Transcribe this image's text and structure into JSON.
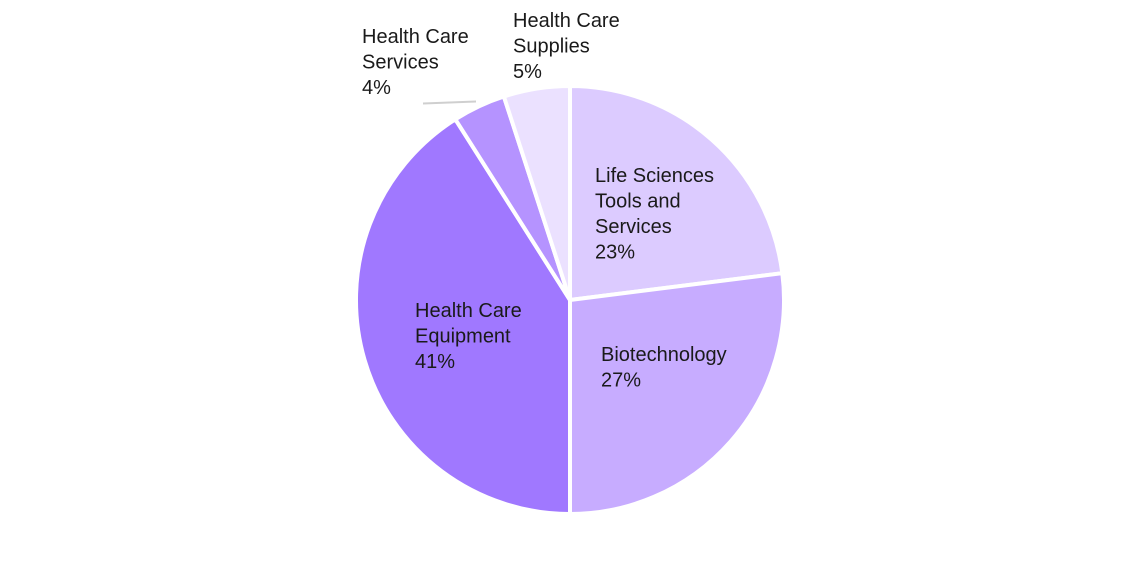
{
  "chart_data": {
    "type": "pie",
    "title": "",
    "start_angle_deg": 0,
    "direction": "clockwise",
    "slices": [
      {
        "name": "Life Sciences Tools and Services",
        "label_lines": [
          "Life Sciences",
          "Tools and",
          "Services",
          "23%"
        ],
        "value": 23,
        "color": "#dccbff"
      },
      {
        "name": "Biotechnology",
        "label_lines": [
          "Biotechnology",
          "27%"
        ],
        "value": 27,
        "color": "#c7acff"
      },
      {
        "name": "Health Care Equipment",
        "label_lines": [
          "Health Care",
          "Equipment",
          "41%"
        ],
        "value": 41,
        "color": "#a078ff"
      },
      {
        "name": "Health Care Services",
        "label_lines": [
          "Health Care",
          "Services",
          "4%"
        ],
        "value": 4,
        "color": "#b593ff"
      },
      {
        "name": "Health Care Supplies",
        "label_lines": [
          "Health Care",
          "Supplies",
          "5%"
        ],
        "value": 5,
        "color": "#ebe1ff"
      }
    ]
  }
}
